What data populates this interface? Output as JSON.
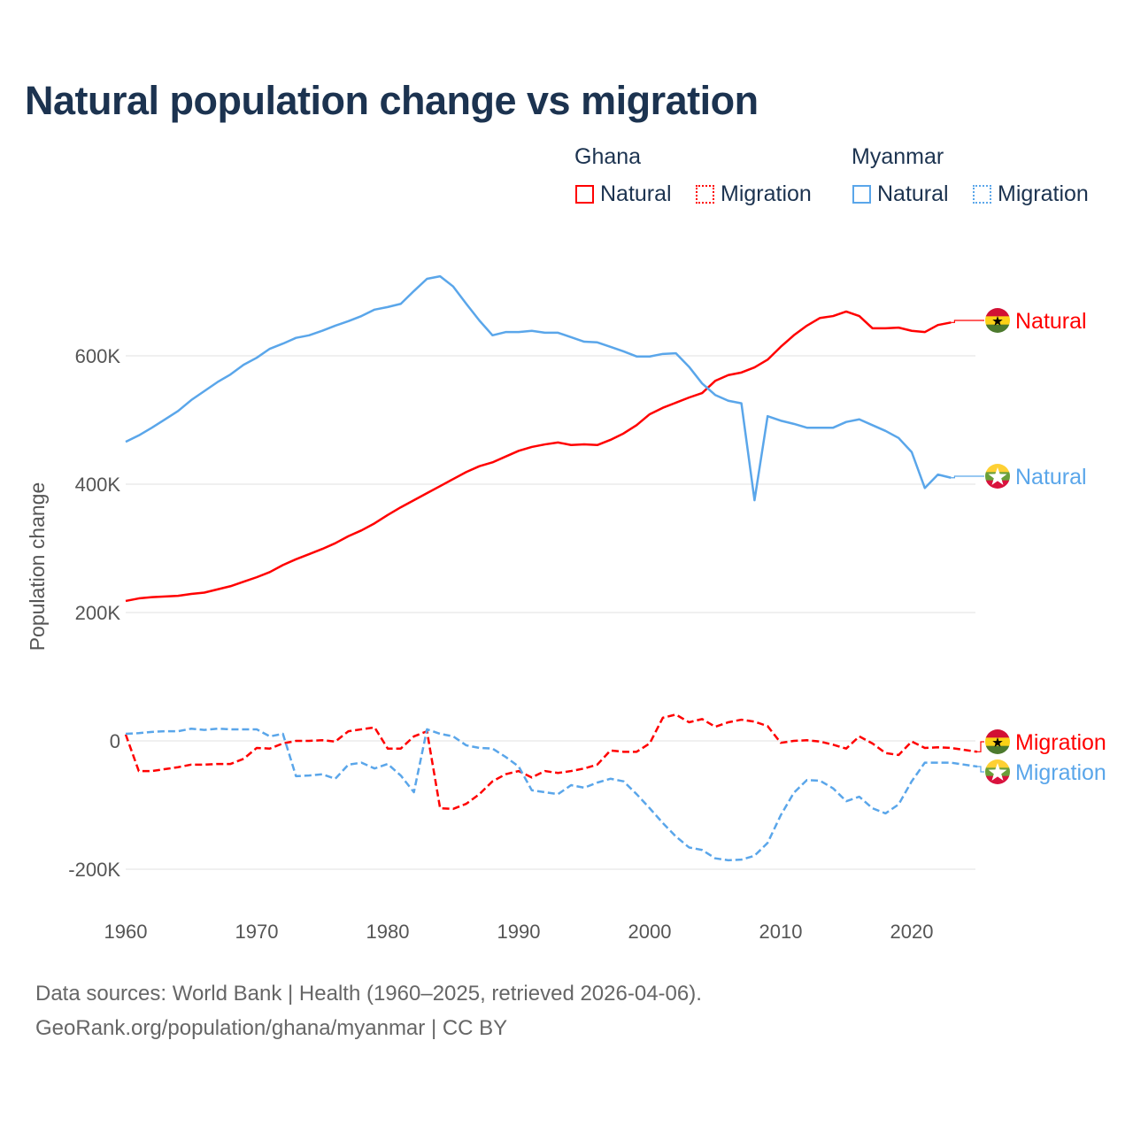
{
  "title": "Natural population change vs migration",
  "legend": {
    "groups": [
      {
        "name": "Ghana",
        "items": [
          {
            "label": "Natural",
            "style": "solid"
          },
          {
            "label": "Migration",
            "style": "dotted"
          }
        ],
        "color": "#ff0000"
      },
      {
        "name": "Myanmar",
        "items": [
          {
            "label": "Natural",
            "style": "solid"
          },
          {
            "label": "Migration",
            "style": "dotted"
          }
        ],
        "color": "#5aa6ea"
      }
    ]
  },
  "footer": {
    "line1": "Data sources: World Bank | Health (1960–2025, retrieved 2026-04-06).",
    "line2": "GeoRank.org/population/ghana/myanmar | CC BY"
  },
  "chart_data": {
    "type": "line",
    "title": "Natural population change vs migration",
    "xlabel": "",
    "ylabel": "Population change",
    "xlim": [
      1960,
      2025
    ],
    "ylim": [
      -220000,
      760000
    ],
    "x_ticks": [
      "1960",
      "1970",
      "1980",
      "1990",
      "2000",
      "2010",
      "2020"
    ],
    "y_ticks": [
      {
        "value": -200000,
        "label": "-200K"
      },
      {
        "value": 0,
        "label": "0"
      },
      {
        "value": 200000,
        "label": "200K"
      },
      {
        "value": 400000,
        "label": "400K"
      },
      {
        "value": 600000,
        "label": "600K"
      }
    ],
    "grid": true,
    "series": [
      {
        "name": "Ghana Natural",
        "end_label": "Natural",
        "country": "ghana",
        "color": "#ff0000",
        "dash": "solid",
        "start_year": 1960,
        "values": [
          218000,
          222000,
          224000,
          225000,
          226000,
          229000,
          231000,
          236000,
          241000,
          248000,
          255000,
          263000,
          274000,
          283000,
          291000,
          299000,
          308000,
          319000,
          328000,
          339000,
          352000,
          364000,
          375000,
          386000,
          397000,
          408000,
          419000,
          428000,
          434000,
          443000,
          452000,
          458000,
          462000,
          465000,
          461000,
          462000,
          461000,
          469000,
          479000,
          492000,
          509000,
          519000,
          527000,
          535000,
          542000,
          561000,
          570000,
          574000,
          582000,
          594000,
          614000,
          632000,
          647000,
          659000,
          662000,
          669000,
          662000,
          643000,
          643000,
          644000,
          639000,
          637000,
          648000,
          652000
        ]
      },
      {
        "name": "Myanmar Natural",
        "end_label": "Natural",
        "country": "myanmar",
        "color": "#5aa6ea",
        "dash": "solid",
        "start_year": 1960,
        "values": [
          466000,
          476000,
          488000,
          501000,
          514000,
          531000,
          545000,
          559000,
          571000,
          586000,
          597000,
          611000,
          619000,
          628000,
          632000,
          639000,
          647000,
          654000,
          662000,
          672000,
          676000,
          681000,
          701000,
          720000,
          724000,
          708000,
          681000,
          655000,
          632000,
          637000,
          637000,
          639000,
          636000,
          636000,
          629000,
          622000,
          621000,
          614000,
          607000,
          599000,
          599000,
          603000,
          604000,
          583000,
          557000,
          539000,
          530000,
          526000,
          375000,
          506000,
          499000,
          494000,
          488000,
          488000,
          488000,
          497000,
          501000,
          492000,
          483000,
          472000,
          450000,
          394000,
          415000,
          410000
        ]
      },
      {
        "name": "Ghana Migration",
        "end_label": "Migration",
        "country": "ghana",
        "color": "#ff0000",
        "dash": "dashed",
        "start_year": 1960,
        "values": [
          10000,
          -47000,
          -47000,
          -44000,
          -41000,
          -37000,
          -37000,
          -36000,
          -36000,
          -28000,
          -11000,
          -12000,
          -4000,
          0,
          0,
          1000,
          -1000,
          15000,
          18000,
          21000,
          -12000,
          -12000,
          7000,
          15000,
          -105000,
          -106000,
          -98000,
          -83000,
          -63000,
          -52000,
          -47000,
          -57000,
          -47000,
          -50000,
          -47000,
          -43000,
          -37000,
          -15000,
          -17000,
          -17000,
          -4000,
          36000,
          41000,
          29000,
          34000,
          22000,
          29000,
          33000,
          30000,
          23000,
          -3000,
          0,
          1000,
          -1000,
          -6000,
          -12000,
          7000,
          -4000,
          -19000,
          -22000,
          -1000,
          -11000,
          -10000,
          -11000,
          -14000,
          -17000
        ]
      },
      {
        "name": "Myanmar Migration",
        "end_label": "Migration",
        "country": "myanmar",
        "color": "#5aa6ea",
        "dash": "dashed",
        "start_year": 1960,
        "values": [
          11000,
          12000,
          14000,
          15000,
          15000,
          19000,
          17000,
          19000,
          18000,
          18000,
          18000,
          7000,
          11000,
          -55000,
          -54000,
          -52000,
          -59000,
          -37000,
          -34000,
          -43000,
          -36000,
          -54000,
          -80000,
          18000,
          11000,
          7000,
          -7000,
          -11000,
          -12000,
          -25000,
          -40000,
          -77000,
          -80000,
          -83000,
          -69000,
          -73000,
          -65000,
          -59000,
          -63000,
          -83000,
          -105000,
          -128000,
          -149000,
          -166000,
          -170000,
          -183000,
          -186000,
          -185000,
          -179000,
          -159000,
          -116000,
          -81000,
          -61000,
          -62000,
          -74000,
          -94000,
          -87000,
          -105000,
          -113000,
          -99000,
          -63000,
          -34000,
          -34000,
          -34000,
          -37000,
          -40000
        ]
      }
    ]
  }
}
